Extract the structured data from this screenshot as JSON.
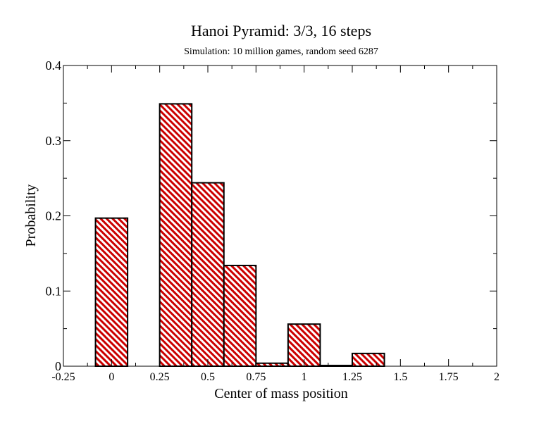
{
  "chart_data": {
    "type": "bar",
    "title": "Hanoi Pyramid: 3/3, 16 steps",
    "subtitle": "Simulation: 10 million games, random seed 6287",
    "xlabel": "Center of mass position",
    "ylabel": "Probability",
    "xlim": [
      -0.25,
      2
    ],
    "ylim": [
      0,
      0.4
    ],
    "x_ticks": [
      -0.25,
      0,
      0.25,
      0.5,
      0.75,
      1,
      1.25,
      1.5,
      1.75,
      2
    ],
    "x_tick_labels": [
      "-0.25",
      "0",
      "0.25",
      "0.5",
      "0.75",
      "1",
      "1.25",
      "1.5",
      "1.75",
      "2"
    ],
    "y_ticks": [
      0,
      0.1,
      0.2,
      0.3,
      0.4
    ],
    "y_tick_labels": [
      "0",
      "0.1",
      "0.2",
      "0.3",
      "0.4"
    ],
    "bar_width": 0.1667,
    "series": [
      {
        "x": [
          0,
          0.3333,
          0.5,
          0.6667,
          0.8333,
          1,
          1.1667,
          1.3333
        ],
        "values": [
          0.197,
          0.349,
          0.244,
          0.134,
          0.004,
          0.056,
          0.001,
          0.017
        ]
      }
    ],
    "grid": false,
    "colors": {
      "bar_stripe": "#cc0000",
      "bar_background": "#ffffff",
      "outline": "#000000"
    }
  }
}
